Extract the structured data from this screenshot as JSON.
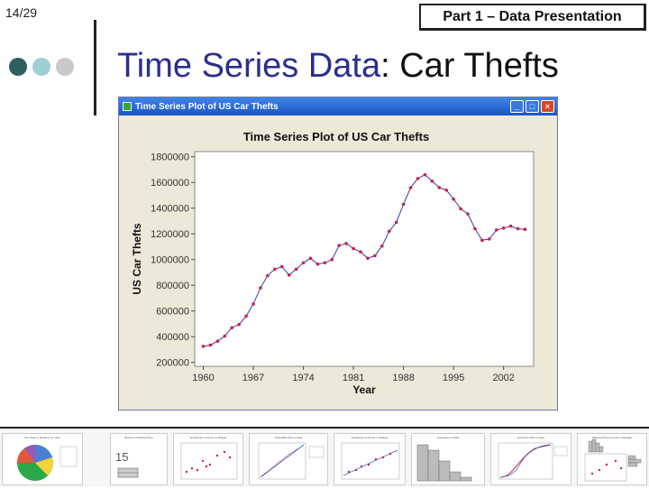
{
  "slide": {
    "number": "14/29",
    "section": "Part 1 – Data Presentation",
    "title_accent": "Time Series Data",
    "title_rest": ": Car Thefts"
  },
  "colors": {
    "dot1": "#2f5f5f",
    "dot2": "#9ecfd4",
    "dot3": "#c9c9c9",
    "line": "#3a3ab0",
    "marker": "#cc2244"
  },
  "window": {
    "title": "Time Series Plot of US Car Thefts"
  },
  "chart_data": {
    "type": "line",
    "title": "Time Series Plot of US Car Thefts",
    "xlabel": "Year",
    "ylabel": "US Car Thefts",
    "xlim": [
      1958.8,
      2006.2
    ],
    "ylim": [
      170000,
      1840000
    ],
    "xticks": [
      1960,
      1967,
      1974,
      1981,
      1988,
      1995,
      2002
    ],
    "yticks": [
      200000,
      400000,
      600000,
      800000,
      1000000,
      1200000,
      1400000,
      1600000,
      1800000
    ],
    "grid": false,
    "series": [
      {
        "x": [
          1960,
          1961,
          1962,
          1963,
          1964,
          1965,
          1966,
          1967,
          1968,
          1969,
          1970,
          1971,
          1972,
          1973,
          1974,
          1975,
          1976,
          1977,
          1978,
          1979,
          1980,
          1981,
          1982,
          1983,
          1984,
          1985,
          1986,
          1987,
          1988,
          1989,
          1990,
          1991,
          1992,
          1993,
          1994,
          1995,
          1996,
          1997,
          1998,
          1999,
          2000,
          2001,
          2002,
          2003,
          2004,
          2005
        ],
        "y": [
          325000,
          335000,
          365000,
          405000,
          470000,
          495000,
          560000,
          655000,
          780000,
          875000,
          925000,
          945000,
          880000,
          925000,
          975000,
          1010000,
          965000,
          975000,
          1000000,
          1110000,
          1125000,
          1085000,
          1060000,
          1010000,
          1030000,
          1105000,
          1220000,
          1290000,
          1430000,
          1560000,
          1630000,
          1660000,
          1610000,
          1560000,
          1540000,
          1470000,
          1395000,
          1355000,
          1240000,
          1150000,
          1160000,
          1230000,
          1245000,
          1260000,
          1240000,
          1235000
        ]
      }
    ]
  },
  "thumbnails": [
    {
      "title": "Pie Chart of Reasons for Visit"
    },
    {
      "title": "Boxplot of Waiting Time",
      "label": "15"
    },
    {
      "title": "Scatterplot of Gross vs Budget"
    },
    {
      "title": "Probability Plot of Data"
    },
    {
      "title": "Scatterplot of Gross vs Budget"
    },
    {
      "title": "Histogram of Data"
    },
    {
      "title": "Empirical CDF of Data"
    },
    {
      "title": "Marginal Plot of Gross vs Budget"
    }
  ]
}
